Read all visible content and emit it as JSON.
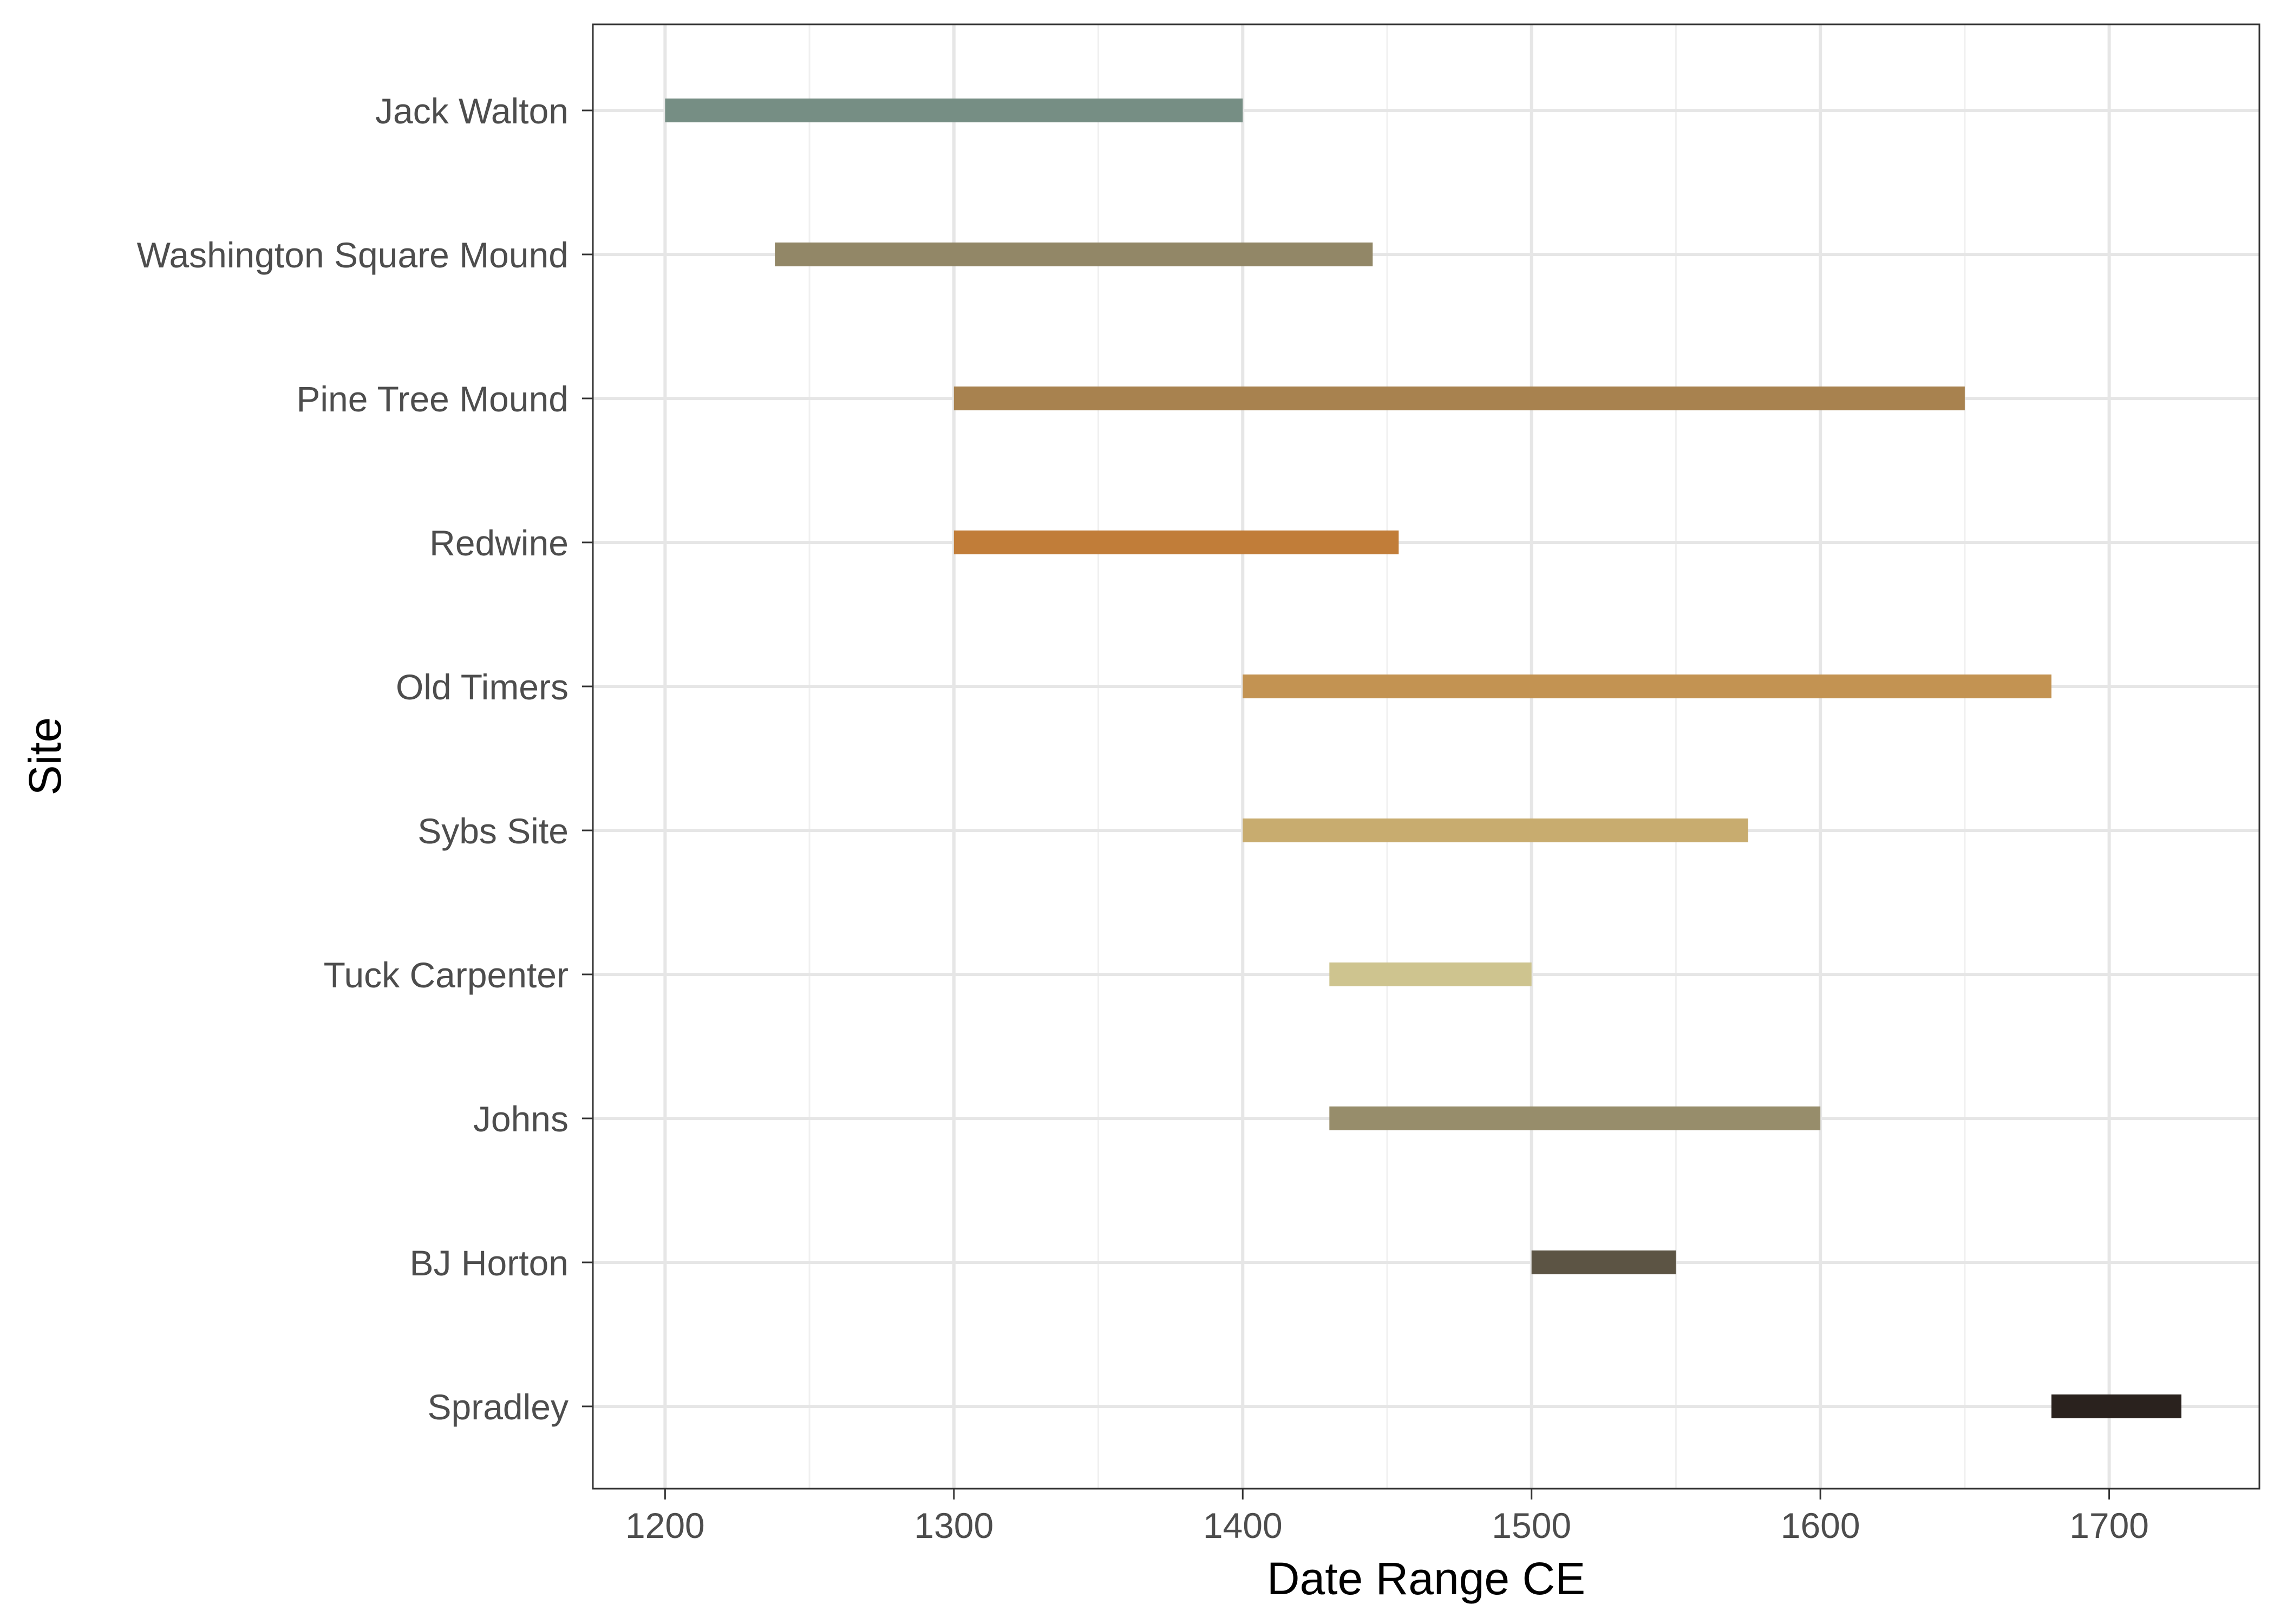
{
  "chart_data": {
    "type": "bar",
    "orientation": "horizontal-range",
    "xlabel": "Date Range CE",
    "ylabel": "Site",
    "xlim": [
      1175,
      1752
    ],
    "x_ticks": [
      1200,
      1300,
      1400,
      1500,
      1600,
      1700
    ],
    "x_minor_ticks": [
      1250,
      1350,
      1450,
      1550,
      1650
    ],
    "grid": true,
    "legend": "none",
    "sites": [
      {
        "name": "Jack Walton",
        "start": 1200,
        "end": 1400,
        "color": "#768e84"
      },
      {
        "name": "Washington Square Mound",
        "start": 1238,
        "end": 1445,
        "color": "#928767"
      },
      {
        "name": "Pine Tree Mound",
        "start": 1300,
        "end": 1650,
        "color": "#a8824f"
      },
      {
        "name": "Redwine",
        "start": 1300,
        "end": 1454,
        "color": "#c17d39"
      },
      {
        "name": "Old Timers",
        "start": 1400,
        "end": 1680,
        "color": "#c39352"
      },
      {
        "name": "Sybs Site",
        "start": 1400,
        "end": 1575,
        "color": "#c8ac6f"
      },
      {
        "name": "Tuck Carpenter",
        "start": 1430,
        "end": 1500,
        "color": "#cec48f"
      },
      {
        "name": "Johns",
        "start": 1430,
        "end": 1600,
        "color": "#978d6b"
      },
      {
        "name": "BJ Horton",
        "start": 1500,
        "end": 1550,
        "color": "#5c5444"
      },
      {
        "name": "Spradley",
        "start": 1680,
        "end": 1725,
        "color": "#2a221e"
      }
    ]
  }
}
